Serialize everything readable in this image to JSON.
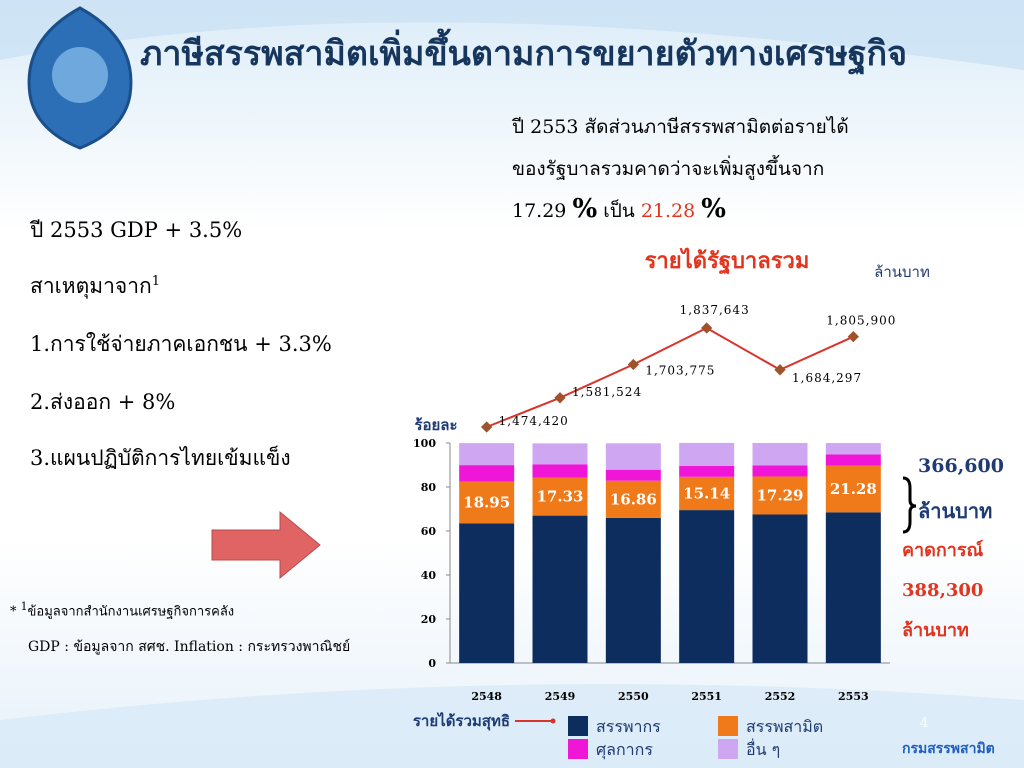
{
  "header": {
    "title": "ภาษีสรรพสามิตเพิ่มขึ้นตามการขยายตัวทางเศรษฐกิจ"
  },
  "summary": {
    "lines": [
      "ปี 2553 สัดส่วนภาษีสรรพสามิตต่อรายได้",
      "ของรัฐบาลรวมคาดว่าจะเพิ่มสูงขึ้นจาก"
    ],
    "from": "17.29",
    "from_unit": "%",
    "connector": "เป็น",
    "to": "21.28",
    "to_unit": "%"
  },
  "causes": {
    "gdp": "ปี 2553 GDP + 3.5%",
    "heading": "สาเหตุมาจาก",
    "note_ref": "1",
    "items": [
      "1.การใช้จ่ายภาคเอกชน + 3.3%",
      "2.ส่งออก + 8%",
      "3.แผนปฏิบัติการไทยเข้มแข็ง"
    ]
  },
  "footnote": {
    "star": "*",
    "ref": "1",
    "source": "ข้อมูลจากสำนักงานเศรษฐกิจการคลัง",
    "line2": "GDP : ข้อมูลจาก สศช. Inflation : กระทรวงพาณิชย์"
  },
  "page_number": "4",
  "footer_logo": "กรมสรรพสามิต",
  "chart_data": {
    "type": "bar",
    "stacked": true,
    "title": "รายได้รัฐบาลรวม",
    "unit_label": "ล้านบาท",
    "y_label": "ร้อยละ",
    "categories": [
      "2548",
      "2549",
      "2550",
      "2551",
      "2552",
      "2553"
    ],
    "ylim": [
      0,
      100
    ],
    "yticks": [
      0,
      20,
      40,
      60,
      80,
      100
    ],
    "series": [
      {
        "name": "สรรพากร",
        "color": "#0d2d5e",
        "values": [
          63.5,
          67,
          66,
          69.5,
          67.5,
          68.5
        ]
      },
      {
        "name": "สรรพสามิต",
        "color": "#f07a1a",
        "values": [
          18.95,
          17.33,
          16.86,
          15.14,
          17.29,
          21.28
        ],
        "show_labels": true
      },
      {
        "name": "ศุลกากร",
        "color": "#f016d8",
        "values": [
          7.5,
          6,
          5,
          5,
          5,
          5
        ]
      },
      {
        "name": "อื่น ๆ",
        "color": "#cfa6f2",
        "values": [
          10,
          9.5,
          12,
          10.4,
          10.2,
          5.2
        ]
      },
      {
        "name": "รายได้รวมสุทธิ",
        "type": "line",
        "color": "#d9342b",
        "marker_color": "#a0522d",
        "values": [
          1474420,
          1581524,
          1703775,
          1837643,
          1684297,
          1805900
        ],
        "value_labels": [
          "1,474,420",
          "1,581,524",
          "1,703,775",
          "1,837,643",
          "1,684,297",
          "1,805,900"
        ]
      }
    ],
    "annotations": [
      "366,600",
      "ล้านบาท",
      "คาดการณ์",
      "388,300",
      "ล้านบาท"
    ]
  }
}
